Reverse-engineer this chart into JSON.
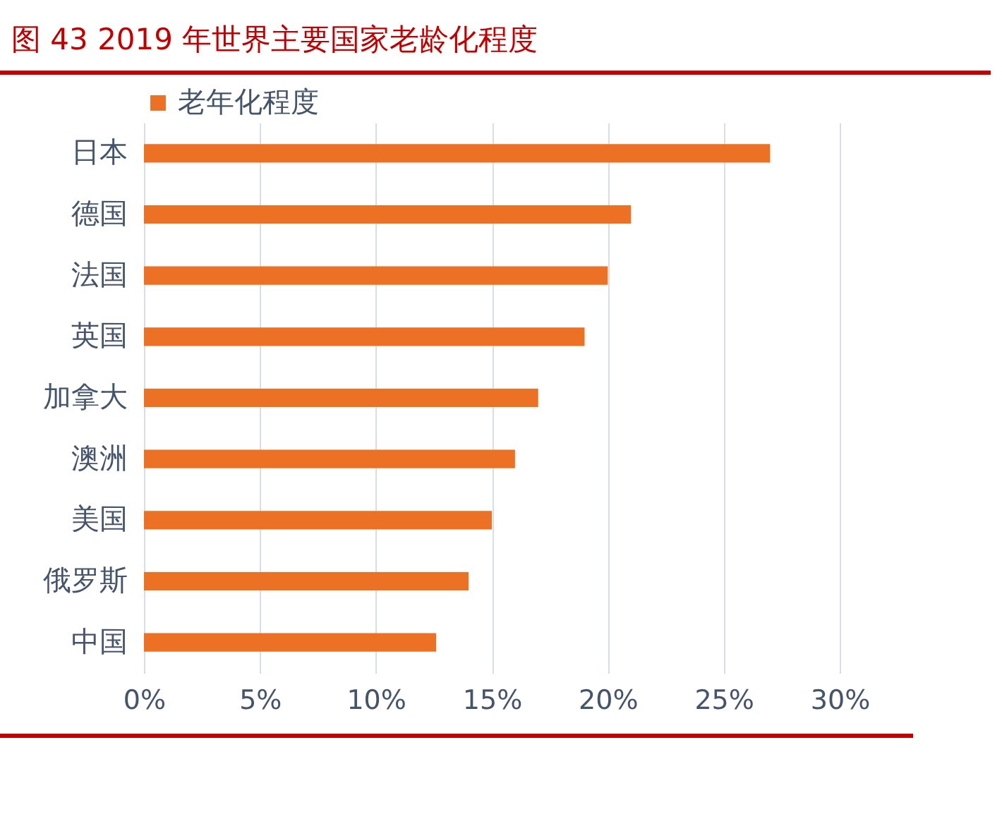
{
  "chart_data": {
    "type": "bar",
    "orientation": "horizontal",
    "title": "图 43 2019 年世界主要国家老龄化程度",
    "categories": [
      "日本",
      "德国",
      "法国",
      "英国",
      "加拿大",
      "澳洲",
      "美国",
      "俄罗斯",
      "中国"
    ],
    "series": [
      {
        "name": "老年化程度",
        "color": "#ed7125",
        "values": [
          27,
          21,
          20,
          19,
          17,
          16,
          15,
          14,
          12.6
        ]
      }
    ],
    "xlim": [
      0,
      30
    ],
    "xticks": [
      {
        "value": 0,
        "label": "0%"
      },
      {
        "value": 5,
        "label": "5%"
      },
      {
        "value": 10,
        "label": "10%"
      },
      {
        "value": 15,
        "label": "15%"
      },
      {
        "value": 20,
        "label": "20%"
      },
      {
        "value": 25,
        "label": "25%"
      },
      {
        "value": 30,
        "label": "30%"
      }
    ],
    "grid": "x",
    "legend": "top"
  }
}
